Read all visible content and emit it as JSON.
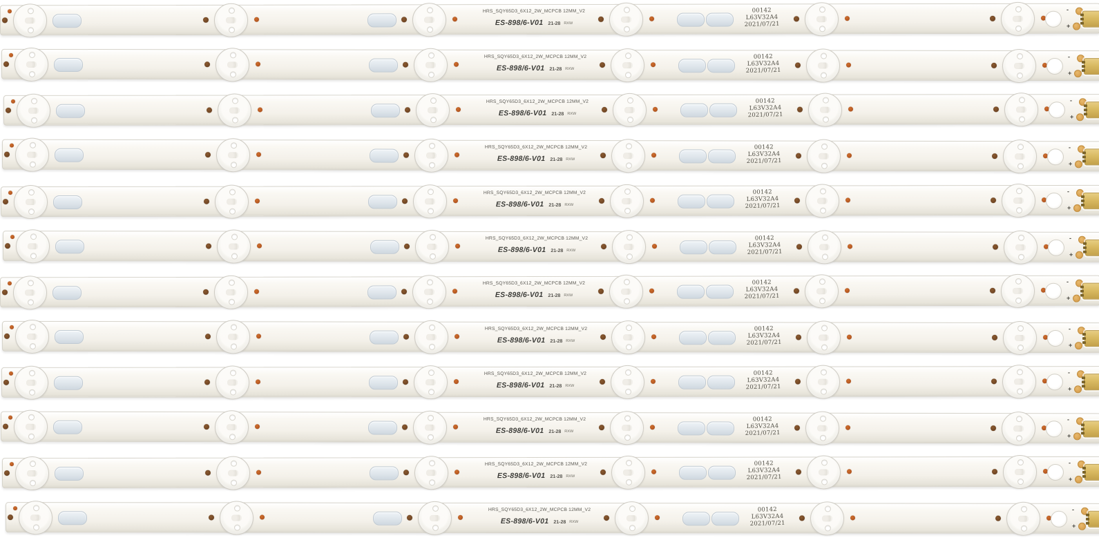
{
  "image": {
    "description": "Twelve identical white LED TV backlight strips laid horizontally on a white background",
    "background_color": "#ffffff"
  },
  "strip": {
    "count": 12,
    "leds_per_strip": 6,
    "print_line1": "HRS_SQY65D3_6X12_2W_MCPCB 12MM_V2",
    "print_line2_model": "ES-898/6-V01",
    "print_line2_date": "21-28",
    "print_line2_code": "RXW",
    "stamp_line1": "00142",
    "stamp_line2": "L63V32A4",
    "stamp_line3": "2021/07/21",
    "polarity_minus": "-",
    "polarity_plus": "+",
    "colors": {
      "board": "#f4f1ea",
      "board_edge": "#d6d3ca",
      "lens_rim": "#cfccc4",
      "pad_oval": "#dde4ea",
      "solder_dot_dark": "#6e4423",
      "solder_dot_rust": "#b0541f",
      "pad_orange": "#d79f4e",
      "connector_gold": "#d9ba62",
      "print_text": "#3c3c38",
      "stamp_text": "#514f46"
    }
  }
}
